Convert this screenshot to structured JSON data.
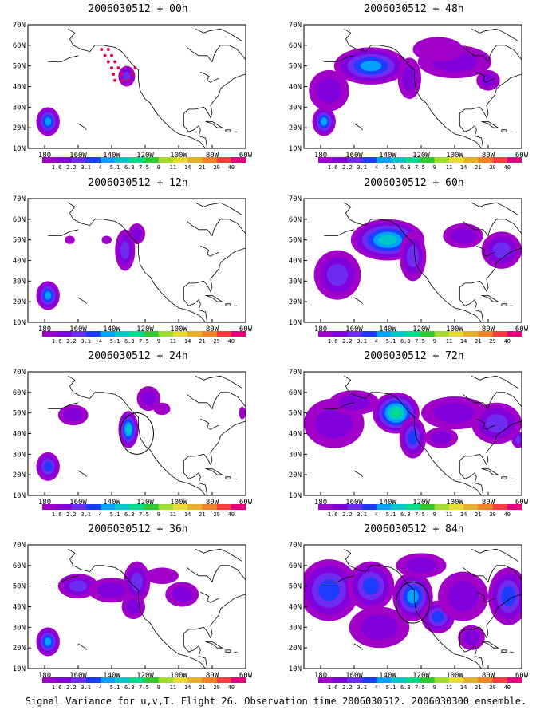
{
  "caption": "Signal Variance for u,v,T. Flight 26. Observation time 2006030512. 2006030300 ensemble.",
  "colorbar": {
    "labels": [
      "1.6",
      "2.2",
      "3.1",
      "4",
      "5.1",
      "6.3",
      "7.5",
      "9",
      "11",
      "14",
      "21",
      "29",
      "40"
    ],
    "colors": [
      "#a000c8",
      "#8200dc",
      "#6e2cf0",
      "#1e3cff",
      "#00a0ff",
      "#00c8c8",
      "#00dc8c",
      "#32c832",
      "#a0dc32",
      "#e6dc32",
      "#e6af2d",
      "#f08228",
      "#fa3c3c",
      "#e60080"
    ]
  },
  "chart_data": [
    {
      "type": "heatmap",
      "title": "2006030512 + 00h",
      "xticks": [
        "180",
        "160W",
        "140W",
        "120W",
        "100W",
        "80W",
        "60W"
      ],
      "yticks": [
        "10N",
        "20N",
        "30N",
        "40N",
        "50N",
        "60N",
        "70N"
      ],
      "xlim": [
        -190,
        -60
      ],
      "ylim": [
        10,
        70
      ],
      "blobs": [
        {
          "lon": -178,
          "lat": 23,
          "rlon": 7,
          "rlat": 7,
          "peak": 5
        },
        {
          "lon": -131,
          "lat": 45,
          "rlon": 5,
          "rlat": 5,
          "peak": 3
        }
      ],
      "markers": {
        "color": "#e6005a",
        "points": [
          [
            -146,
            58
          ],
          [
            -144,
            55
          ],
          [
            -142,
            52
          ],
          [
            -140,
            49
          ],
          [
            -139,
            46
          ],
          [
            -138,
            43
          ],
          [
            -142,
            58
          ],
          [
            -140,
            55
          ],
          [
            -138,
            52
          ],
          [
            -136,
            49
          ],
          [
            -134,
            46
          ],
          [
            -133,
            43
          ],
          [
            -130,
            43
          ],
          [
            -128,
            46
          ],
          [
            -126,
            49
          ]
        ]
      }
    },
    {
      "type": "heatmap",
      "title": "2006030512 + 48h",
      "xticks": [
        "180",
        "160W",
        "140W",
        "120W",
        "100W",
        "80W",
        "60W"
      ],
      "yticks": [
        "10N",
        "20N",
        "30N",
        "40N",
        "50N",
        "60N",
        "70N"
      ],
      "xlim": [
        -190,
        -60
      ],
      "ylim": [
        10,
        70
      ],
      "blobs": [
        {
          "lon": -178,
          "lat": 23,
          "rlon": 7,
          "rlat": 7,
          "peak": 5
        },
        {
          "lon": -150,
          "lat": 50,
          "rlon": 22,
          "rlat": 9,
          "peak": 5
        },
        {
          "lon": -175,
          "lat": 38,
          "rlon": 12,
          "rlat": 10,
          "peak": 2
        },
        {
          "lon": -127,
          "lat": 44,
          "rlon": 7,
          "rlat": 10,
          "peak": 2
        },
        {
          "lon": -100,
          "lat": 52,
          "rlon": 22,
          "rlat": 8,
          "peak": 2
        },
        {
          "lon": -80,
          "lat": 43,
          "rlon": 7,
          "rlat": 5,
          "peak": 2
        },
        {
          "lon": -110,
          "lat": 58,
          "rlon": 15,
          "rlat": 6,
          "peak": 1
        }
      ]
    },
    {
      "type": "heatmap",
      "title": "2006030512 + 12h",
      "xticks": [
        "180",
        "160W",
        "140W",
        "120W",
        "100W",
        "80W",
        "60W"
      ],
      "yticks": [
        "10N",
        "20N",
        "30N",
        "40N",
        "50N",
        "60N",
        "70N"
      ],
      "xlim": [
        -190,
        -60
      ],
      "ylim": [
        10,
        70
      ],
      "blobs": [
        {
          "lon": -178,
          "lat": 23,
          "rlon": 7,
          "rlat": 7,
          "peak": 5
        },
        {
          "lon": -132,
          "lat": 45,
          "rlon": 6,
          "rlat": 10,
          "peak": 3
        },
        {
          "lon": -125,
          "lat": 53,
          "rlon": 5,
          "rlat": 5,
          "peak": 2
        },
        {
          "lon": -165,
          "lat": 50,
          "rlon": 3,
          "rlat": 2,
          "peak": 1
        },
        {
          "lon": -143,
          "lat": 50,
          "rlon": 3,
          "rlat": 2,
          "peak": 1
        }
      ]
    },
    {
      "type": "heatmap",
      "title": "2006030512 + 60h",
      "xticks": [
        "180",
        "160W",
        "140W",
        "120W",
        "100W",
        "80W",
        "60W"
      ],
      "yticks": [
        "10N",
        "20N",
        "30N",
        "40N",
        "50N",
        "60N",
        "70N"
      ],
      "xlim": [
        -190,
        -60
      ],
      "ylim": [
        10,
        70
      ],
      "blobs": [
        {
          "lon": -140,
          "lat": 50,
          "rlon": 22,
          "rlat": 10,
          "peak": 6
        },
        {
          "lon": -170,
          "lat": 33,
          "rlon": 14,
          "rlat": 12,
          "peak": 3
        },
        {
          "lon": -125,
          "lat": 42,
          "rlon": 8,
          "rlat": 12,
          "peak": 3
        },
        {
          "lon": -95,
          "lat": 52,
          "rlon": 12,
          "rlat": 6,
          "peak": 2
        },
        {
          "lon": -72,
          "lat": 45,
          "rlon": 12,
          "rlat": 9,
          "peak": 3
        }
      ]
    },
    {
      "type": "heatmap",
      "title": "2006030512 + 24h",
      "xticks": [
        "180",
        "160W",
        "140W",
        "120W",
        "100W",
        "80W",
        "60W"
      ],
      "yticks": [
        "10N",
        "20N",
        "30N",
        "40N",
        "50N",
        "60N",
        "70N"
      ],
      "xlim": [
        -190,
        -60
      ],
      "ylim": [
        10,
        70
      ],
      "blobs": [
        {
          "lon": -178,
          "lat": 24,
          "rlon": 7,
          "rlat": 7,
          "peak": 4
        },
        {
          "lon": -163,
          "lat": 49,
          "rlon": 9,
          "rlat": 5,
          "peak": 2
        },
        {
          "lon": -130,
          "lat": 42,
          "rlon": 6,
          "rlat": 9,
          "peak": 6
        },
        {
          "lon": -118,
          "lat": 57,
          "rlon": 7,
          "rlat": 6,
          "peak": 2
        },
        {
          "lon": -110,
          "lat": 52,
          "rlon": 5,
          "rlat": 3,
          "peak": 1
        },
        {
          "lon": -62,
          "lat": 50,
          "rlon": 2,
          "rlat": 3,
          "peak": 1
        }
      ],
      "circle": {
        "lon": -125,
        "lat": 40,
        "r": 10
      }
    },
    {
      "type": "heatmap",
      "title": "2006030512 + 72h",
      "xticks": [
        "180",
        "160W",
        "140W",
        "120W",
        "100W",
        "80W",
        "60W"
      ],
      "yticks": [
        "10N",
        "20N",
        "30N",
        "40N",
        "50N",
        "60N",
        "70N"
      ],
      "xlim": [
        -190,
        -60
      ],
      "ylim": [
        10,
        70
      ],
      "blobs": [
        {
          "lon": -135,
          "lat": 50,
          "rlon": 14,
          "rlat": 10,
          "peak": 7
        },
        {
          "lon": -125,
          "lat": 38,
          "rlon": 8,
          "rlat": 10,
          "peak": 4
        },
        {
          "lon": -172,
          "lat": 45,
          "rlon": 18,
          "rlat": 12,
          "peak": 2
        },
        {
          "lon": -160,
          "lat": 55,
          "rlon": 15,
          "rlat": 6,
          "peak": 2
        },
        {
          "lon": -100,
          "lat": 50,
          "rlon": 20,
          "rlat": 8,
          "peak": 2
        },
        {
          "lon": -75,
          "lat": 45,
          "rlon": 15,
          "rlat": 10,
          "peak": 3
        },
        {
          "lon": -108,
          "lat": 38,
          "rlon": 10,
          "rlat": 5,
          "peak": 2
        },
        {
          "lon": -62,
          "lat": 37,
          "rlon": 4,
          "rlat": 4,
          "peak": 3
        }
      ]
    },
    {
      "type": "heatmap",
      "title": "2006030512 + 36h",
      "xticks": [
        "180",
        "160W",
        "140W",
        "120W",
        "100W",
        "80W",
        "60W"
      ],
      "yticks": [
        "10N",
        "20N",
        "30N",
        "40N",
        "50N",
        "60N",
        "70N"
      ],
      "xlim": [
        -190,
        -60
      ],
      "ylim": [
        10,
        70
      ],
      "blobs": [
        {
          "lon": -178,
          "lat": 23,
          "rlon": 7,
          "rlat": 7,
          "peak": 5
        },
        {
          "lon": -160,
          "lat": 50,
          "rlon": 12,
          "rlat": 6,
          "peak": 3
        },
        {
          "lon": -140,
          "lat": 48,
          "rlon": 14,
          "rlat": 6,
          "peak": 2
        },
        {
          "lon": -125,
          "lat": 52,
          "rlon": 8,
          "rlat": 10,
          "peak": 3
        },
        {
          "lon": -127,
          "lat": 40,
          "rlon": 7,
          "rlat": 6,
          "peak": 2
        },
        {
          "lon": -98,
          "lat": 46,
          "rlon": 10,
          "rlat": 6,
          "peak": 2
        },
        {
          "lon": -110,
          "lat": 55,
          "rlon": 10,
          "rlat": 4,
          "peak": 1
        }
      ]
    },
    {
      "type": "heatmap",
      "title": "2006030512 + 84h",
      "xticks": [
        "180",
        "160W",
        "140W",
        "120W",
        "100W",
        "80W",
        "60W"
      ],
      "yticks": [
        "10N",
        "20N",
        "30N",
        "40N",
        "50N",
        "60N",
        "70N"
      ],
      "xlim": [
        -190,
        -60
      ],
      "ylim": [
        10,
        70
      ],
      "blobs": [
        {
          "lon": -175,
          "lat": 48,
          "rlon": 18,
          "rlat": 15,
          "peak": 4
        },
        {
          "lon": -150,
          "lat": 50,
          "rlon": 14,
          "rlat": 12,
          "peak": 4
        },
        {
          "lon": -125,
          "lat": 45,
          "rlon": 12,
          "rlat": 12,
          "peak": 5
        },
        {
          "lon": -110,
          "lat": 35,
          "rlon": 10,
          "rlat": 8,
          "peak": 4
        },
        {
          "lon": -95,
          "lat": 45,
          "rlon": 15,
          "rlat": 12,
          "peak": 2
        },
        {
          "lon": -68,
          "lat": 45,
          "rlon": 12,
          "rlat": 14,
          "peak": 4
        },
        {
          "lon": -145,
          "lat": 30,
          "rlon": 18,
          "rlat": 10,
          "peak": 2
        },
        {
          "lon": -120,
          "lat": 60,
          "rlon": 15,
          "rlat": 6,
          "peak": 2
        },
        {
          "lon": -90,
          "lat": 25,
          "rlon": 8,
          "rlat": 6,
          "peak": 2
        }
      ],
      "circle": {
        "lon": -125,
        "lat": 42,
        "r": 10
      }
    }
  ]
}
